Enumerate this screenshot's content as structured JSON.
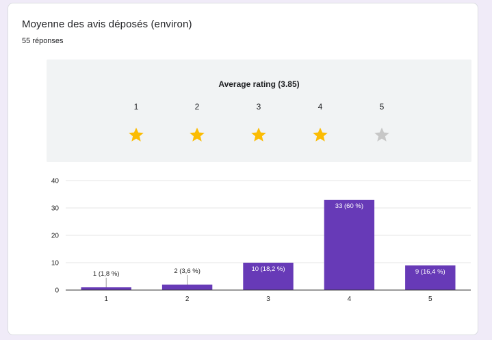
{
  "question": {
    "title": "Moyenne des avis déposés (environ)",
    "response_count": "55 réponses"
  },
  "rating_summary": {
    "label": "Average rating (3.85)",
    "stars": [
      {
        "number": "1",
        "state": "filled"
      },
      {
        "number": "2",
        "state": "filled"
      },
      {
        "number": "3",
        "state": "filled"
      },
      {
        "number": "4",
        "state": "filled"
      },
      {
        "number": "5",
        "state": "empty"
      }
    ],
    "filled_color": "#fbbc04",
    "empty_color": "#c7c7c7"
  },
  "chart_data": {
    "type": "bar",
    "categories": [
      "1",
      "2",
      "3",
      "4",
      "5"
    ],
    "values": [
      1,
      2,
      10,
      33,
      9
    ],
    "data_labels": [
      "1 (1,8 %)",
      "2 (3,6 %)",
      "10 (18,2 %)",
      "33 (60 %)",
      "9 (16,4 %)"
    ],
    "ylim": [
      0,
      40
    ],
    "yticks": [
      "0",
      "10",
      "20",
      "30",
      "40"
    ],
    "grid": true,
    "bar_color": "#673ab7",
    "xlabel": "",
    "ylabel": ""
  }
}
